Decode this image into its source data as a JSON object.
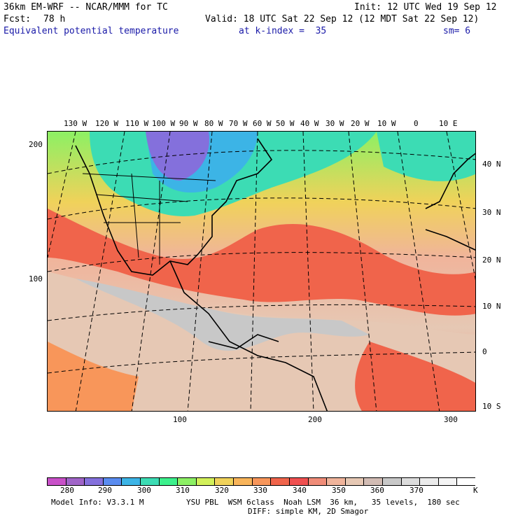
{
  "header": {
    "model": "36km EM-WRF -- NCAR/MMM for TC",
    "init": "Init: 12 UTC Wed 19 Sep 12",
    "fcst_label": "Fcst:",
    "fcst_value": "78 h",
    "valid": "Valid: 18 UTC Sat 22 Sep 12 (12 MDT Sat 22 Sep 12)",
    "field": "Equivalent potential temperature",
    "level": "at k-index =  35",
    "smooth": "sm= 6"
  },
  "map": {
    "top_lon_labels": [
      "130 W",
      "120 W",
      "110 W",
      "100 W",
      "90 W",
      "80 W",
      "70 W",
      "60 W",
      "50 W",
      "40 W",
      "30 W",
      "20 W",
      "10 W",
      "0",
      "10 E"
    ],
    "right_lat_labels": [
      "40 N",
      "30 N",
      "20 N",
      "10 N",
      "0",
      "10 S"
    ],
    "left_grid_labels": [
      "200",
      "100"
    ],
    "bottom_grid_labels": [
      "100",
      "200",
      "300"
    ]
  },
  "colorbar": {
    "colors": [
      "#c850c8",
      "#a064c8",
      "#8470dc",
      "#5a8cf0",
      "#3cb4e6",
      "#3cdcb4",
      "#3cf08c",
      "#8cf064",
      "#d2f05a",
      "#f0d25a",
      "#f8b45a",
      "#f8965a",
      "#f0644b",
      "#f05050",
      "#f08c78",
      "#f0b49b",
      "#e6c8b4",
      "#d2bcb4",
      "#c8c8c8",
      "#dcdcdc",
      "#ebebeb",
      "#f4f4f4",
      "#ffffff"
    ],
    "labels": [
      "280",
      "290",
      "300",
      "310",
      "320",
      "330",
      "340",
      "350",
      "360",
      "370"
    ],
    "units": "K"
  },
  "footer": {
    "model_info": "Model Info: V3.3.1 M",
    "physics": "YSU PBL  WSM 6class  Noah LSM  36 km,   35 levels,  180 sec",
    "diffusion": "DIFF: simple KM, 2D Smagor"
  }
}
